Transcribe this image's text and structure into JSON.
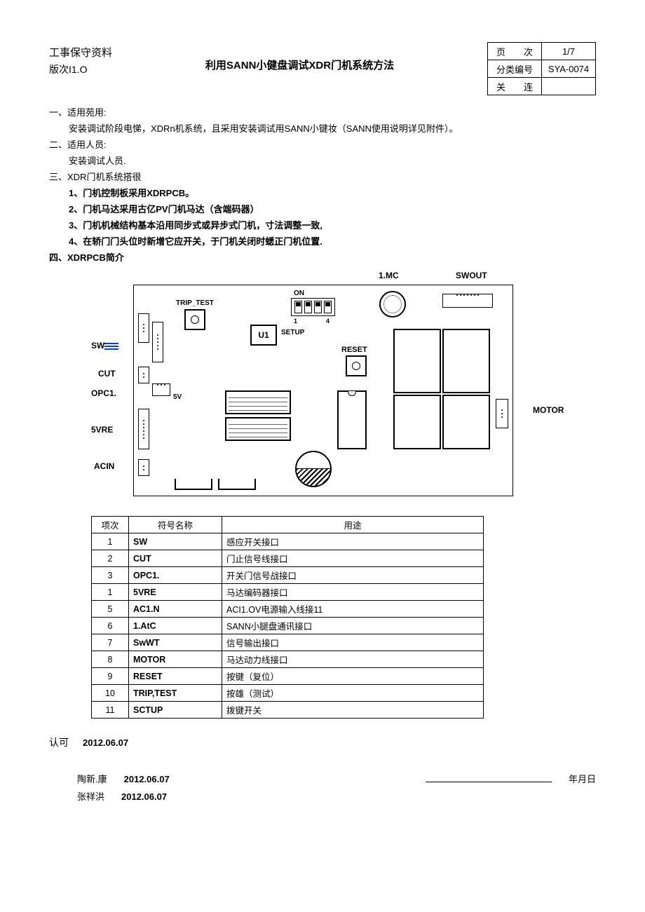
{
  "header": {
    "confidential": "工事保守资料",
    "version_label": "版次I1.O",
    "title": "利用SANN小健盘调试XDR门机系统方法"
  },
  "meta": {
    "page_label": "页　　次",
    "page_value": "1/7",
    "class_label": "分类编号",
    "class_value": "SYA-0074",
    "rel_label": "关　　连",
    "rel_value": ""
  },
  "sections": {
    "s1_title": "一、适用苑用:",
    "s1_body": "安装调试阶段电悌，XDRn机系统，且采用安装调试用SANN小键妆（SANN使用说明详见附件）。",
    "s2_title": "二、适用人员:",
    "s2_body": "安装调试人员.",
    "s3_title": "三、XDR门机系统搭很",
    "s3_items": [
      "1、门机控制板采用XDRPCB。",
      "2、门机马达采用古亿PV门机马达（含端码器）",
      "3、门机机械结构基本沿用同步式或异步式门机，寸法调整一致,",
      "4、在轿门门头位时新增它应开关，于门机关闭时蟋正门机位置."
    ],
    "s4_title": "四、XDRPCB简介"
  },
  "pcb_labels": {
    "mc": "1.MC",
    "swout": "SWOUT",
    "trip_test": "TRIP_TEST",
    "on": "ON",
    "one": "1",
    "four": "4",
    "u1": "U1",
    "setup": "SETUP",
    "reset": "RESET",
    "sw": "SW",
    "cut": "CUT",
    "opc1": "OPC1.",
    "v5": "5V",
    "vre5": "5VRE",
    "acin": "ACIN",
    "motor": "MOTOR"
  },
  "table": {
    "headers": [
      "项次",
      "符号名称",
      "用途"
    ],
    "rows": [
      [
        "1",
        "SW",
        "感应开关接口"
      ],
      [
        "2",
        "CUT",
        "门止信号线接口"
      ],
      [
        "3",
        "OPC1.",
        "开关门信号战接口"
      ],
      [
        "1",
        "5VRE",
        "马达编码器接口"
      ],
      [
        "5",
        "AC1.N",
        "ACI1.OV电源输入线接11"
      ],
      [
        "6",
        "1.AtC",
        "SANN小腿盘通讯接口"
      ],
      [
        "7",
        "SwWT",
        "信号输出接口"
      ],
      [
        "8",
        "MOTOR",
        "马达动力线接口"
      ],
      [
        "9",
        "RESET",
        "按键（复位）"
      ],
      [
        "10",
        "TRIP,TEST",
        "按雄（测试）"
      ],
      [
        "11",
        "SCTUP",
        "拨键开关"
      ]
    ]
  },
  "footer": {
    "approve": "认可",
    "date_main": "2012.06.07",
    "name1": "陶新.康",
    "date1": "2012.06.07",
    "name2": "张祥洪",
    "date2": "2012.06.07",
    "ymd": "年月日"
  }
}
